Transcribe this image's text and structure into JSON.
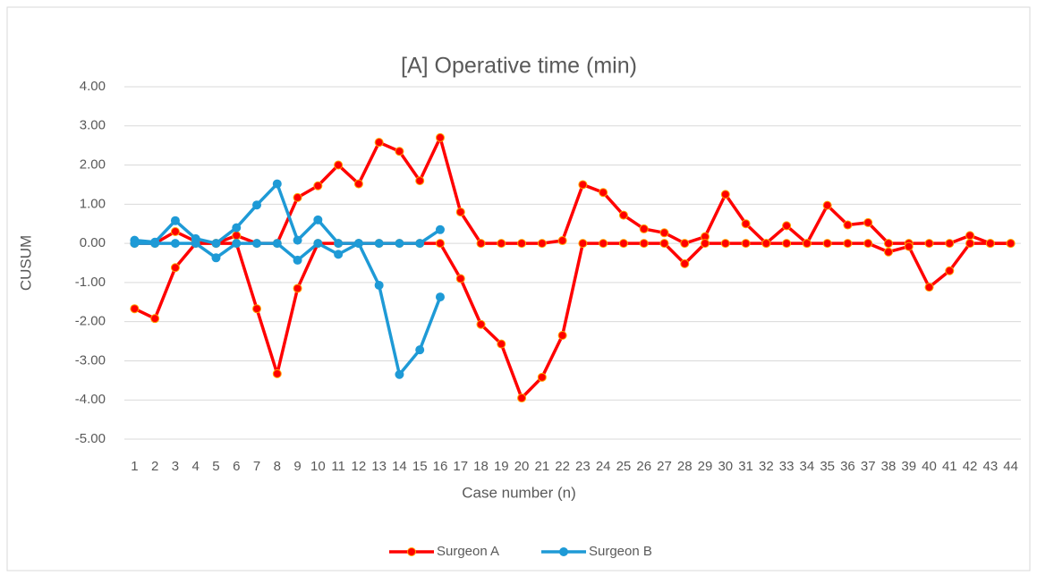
{
  "chart_data": {
    "type": "line",
    "title": "[A] Operative time (min)",
    "x_label": "Case number (n)",
    "y_label": "CUSUM",
    "categories": [
      1,
      2,
      3,
      4,
      5,
      6,
      7,
      8,
      9,
      10,
      11,
      12,
      13,
      14,
      15,
      16,
      17,
      18,
      19,
      20,
      21,
      22,
      23,
      24,
      25,
      26,
      27,
      28,
      29,
      30,
      31,
      32,
      33,
      34,
      35,
      36,
      37,
      38,
      39,
      40,
      41,
      42,
      43,
      44
    ],
    "ylim": [
      -5,
      4
    ],
    "yticks": [
      {
        "value": -5,
        "label": "-5.00"
      },
      {
        "value": -4,
        "label": "-4.00"
      },
      {
        "value": -3,
        "label": "-3.00"
      },
      {
        "value": -2,
        "label": "-2.00"
      },
      {
        "value": -1,
        "label": "-1.00"
      },
      {
        "value": 0,
        "label": "0.00"
      },
      {
        "value": 1,
        "label": "1.00"
      },
      {
        "value": 2,
        "label": "2.00"
      },
      {
        "value": 3,
        "label": "3.00"
      },
      {
        "value": 4,
        "label": "4.00"
      }
    ],
    "grid": true,
    "legend": "bottom",
    "series": [
      {
        "name": "Surgeon A",
        "color": "#ff0000",
        "marker_edge": "#ffa500",
        "values": [
          0,
          0,
          0.3,
          0.05,
          0,
          0.2,
          0,
          0,
          1.17,
          1.47,
          2.0,
          1.52,
          2.58,
          2.35,
          1.6,
          2.7,
          0.8,
          0,
          0,
          0,
          0,
          0.07,
          1.5,
          1.3,
          0.72,
          0.37,
          0.27,
          0,
          0.17,
          1.25,
          0.5,
          0,
          0.45,
          0,
          0.97,
          0.47,
          0.53,
          0,
          0,
          0,
          0,
          0.2,
          0,
          0
        ],
        "lower": [
          -1.67,
          -1.92,
          -0.62,
          0,
          0,
          0,
          -1.67,
          -3.33,
          -1.15,
          0,
          0,
          0,
          0,
          0,
          0,
          0,
          -0.9,
          -2.07,
          -2.57,
          -3.95,
          -3.42,
          -2.35,
          0,
          0,
          0,
          0,
          0,
          -0.52,
          0,
          0,
          0,
          0,
          0,
          0,
          0,
          0,
          0,
          -0.22,
          -0.08,
          -1.12,
          -0.7,
          0,
          0,
          0
        ]
      },
      {
        "name": "Surgeon B",
        "color": "#1e9ad6",
        "marker_edge": "#1e9ad6",
        "values": [
          0.08,
          0.03,
          0.58,
          0.12,
          0,
          0.4,
          0.98,
          1.52,
          0.08,
          0.6,
          0,
          0,
          0,
          0,
          0,
          0.35,
          null,
          null,
          null,
          null,
          null,
          null,
          null,
          null,
          null,
          null,
          null,
          null,
          null,
          null,
          null,
          null,
          null,
          null,
          null,
          null,
          null,
          null,
          null,
          null,
          null,
          null,
          null,
          null
        ],
        "lower": [
          0,
          0,
          0,
          0,
          -0.37,
          0,
          0,
          0,
          -0.43,
          0,
          -0.28,
          0,
          -1.07,
          -3.35,
          -2.72,
          -1.37,
          null,
          null,
          null,
          null,
          null,
          null,
          null,
          null,
          null,
          null,
          null,
          null,
          null,
          null,
          null,
          null,
          null,
          null,
          null,
          null,
          null,
          null,
          null,
          null,
          null,
          null,
          null,
          null
        ]
      }
    ]
  }
}
